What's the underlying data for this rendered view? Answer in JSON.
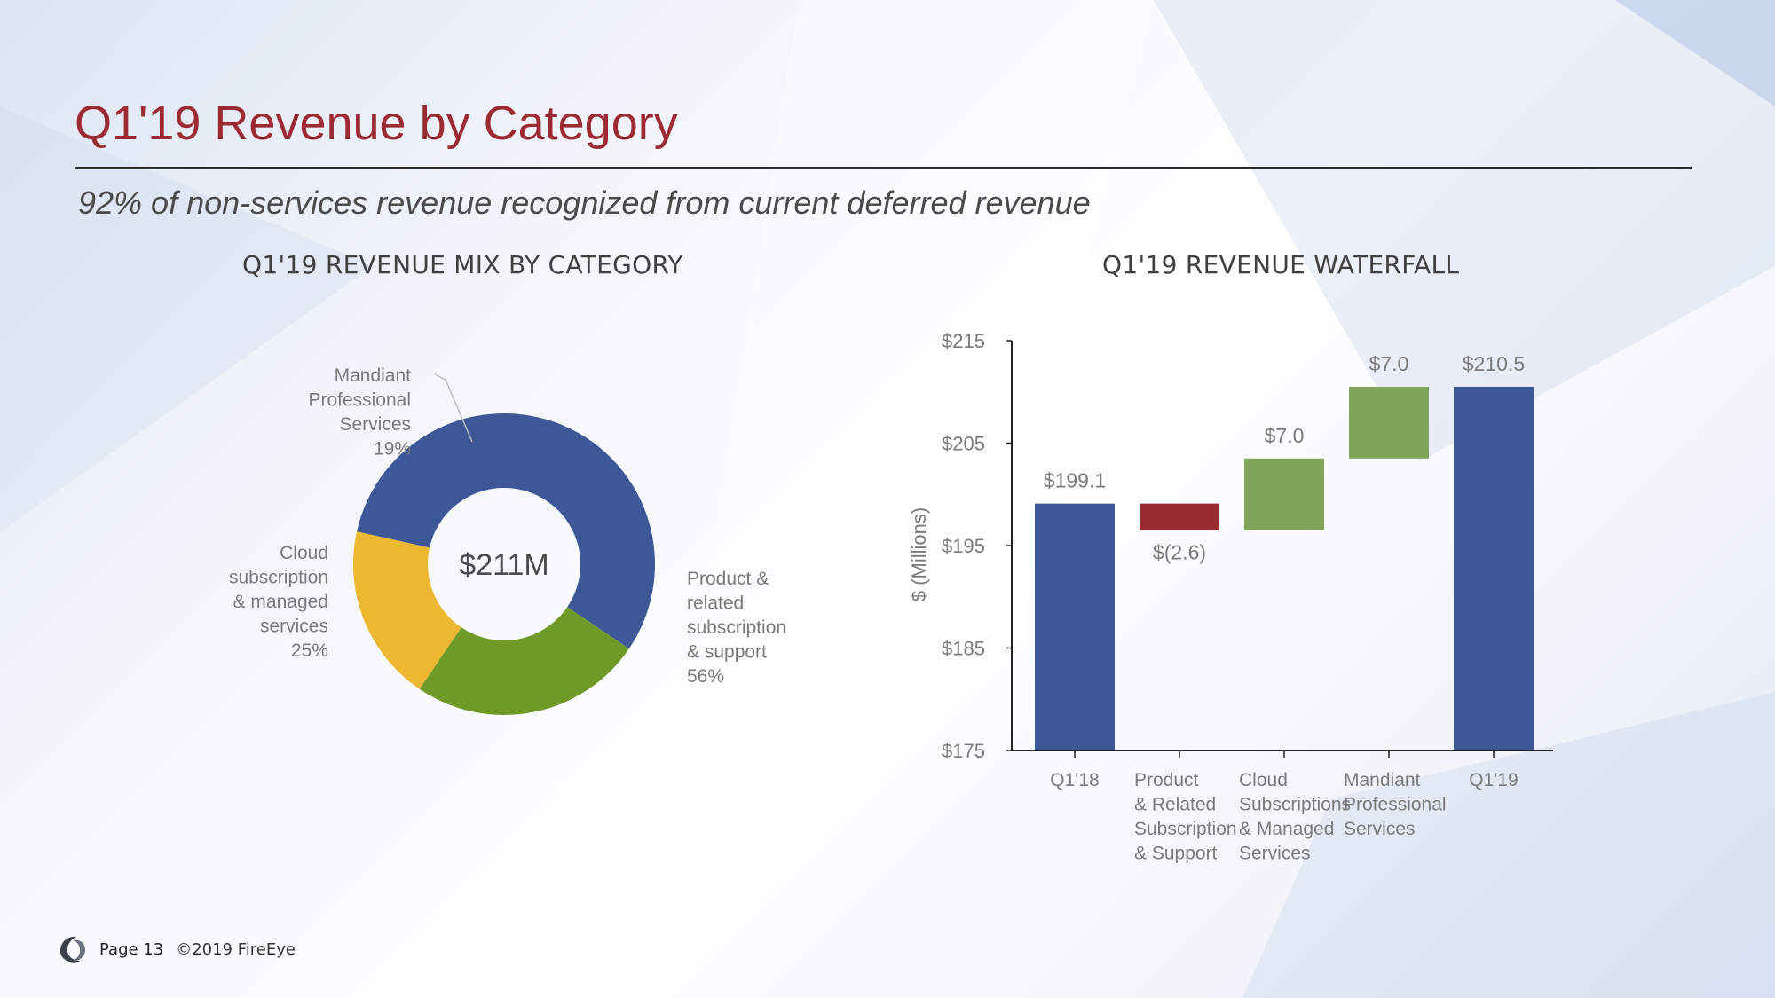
{
  "slide": {
    "title": "Q1'19 Revenue by Category",
    "subtitle": "92% of non-services revenue recognized from current deferred revenue",
    "footer": {
      "page": "Page 13",
      "copyright": "©2019 FireEye"
    }
  },
  "colors": {
    "title": "#9b2a33",
    "blue": "#3e5897",
    "green": "#6f9a28",
    "yellow": "#ecb731",
    "light_green": "#80a55a",
    "red": "#9b2a33",
    "label": "#7a7a7a"
  },
  "chart_data": [
    {
      "type": "pie",
      "title": "Q1'19 REVENUE MIX BY CATEGORY",
      "center_label": "$211M",
      "slices": [
        {
          "label_lines": [
            "Product &",
            "related",
            "subscription",
            "& support",
            "56%"
          ],
          "value": 56,
          "color": "#3e5897"
        },
        {
          "label_lines": [
            "Cloud",
            "subscription",
            "& managed",
            "services",
            "25%"
          ],
          "value": 25,
          "color": "#6f9a28"
        },
        {
          "label_lines": [
            "Mandiant",
            "Professional",
            "Services",
            "19%"
          ],
          "value": 19,
          "color": "#ecb731"
        }
      ]
    },
    {
      "type": "bar",
      "subtype": "waterfall",
      "title": "Q1'19 REVENUE WATERFALL",
      "ylabel": "$ (Millions)",
      "ylim": [
        175,
        215
      ],
      "yticks": [
        {
          "value": 215,
          "label": "$215"
        },
        {
          "value": 205,
          "label": "$205"
        },
        {
          "value": 195,
          "label": "$195"
        },
        {
          "value": 185,
          "label": "$185"
        },
        {
          "value": 175,
          "label": "$175"
        }
      ],
      "bars": [
        {
          "category_lines": [
            "Q1'18"
          ],
          "start": 175,
          "end": 199.1,
          "label": "$199.1",
          "color": "#3e5897",
          "label_pos": "above"
        },
        {
          "category_lines": [
            "Product",
            "& Related",
            "Subscription",
            "& Support"
          ],
          "start": 199.1,
          "end": 196.5,
          "label": "$(2.6)",
          "color": "#9b2a33",
          "label_pos": "below"
        },
        {
          "category_lines": [
            "Cloud",
            "Subscriptions",
            "& Managed",
            "Services"
          ],
          "start": 196.5,
          "end": 203.5,
          "label": "$7.0",
          "color": "#80a55a",
          "label_pos": "above"
        },
        {
          "category_lines": [
            "Mandiant",
            "Professional",
            "Services"
          ],
          "start": 203.5,
          "end": 210.5,
          "label": "$7.0",
          "color": "#80a55a",
          "label_pos": "above"
        },
        {
          "category_lines": [
            "Q1'19"
          ],
          "start": 175,
          "end": 210.5,
          "label": "$210.5",
          "color": "#3e5897",
          "label_pos": "above"
        }
      ]
    }
  ]
}
